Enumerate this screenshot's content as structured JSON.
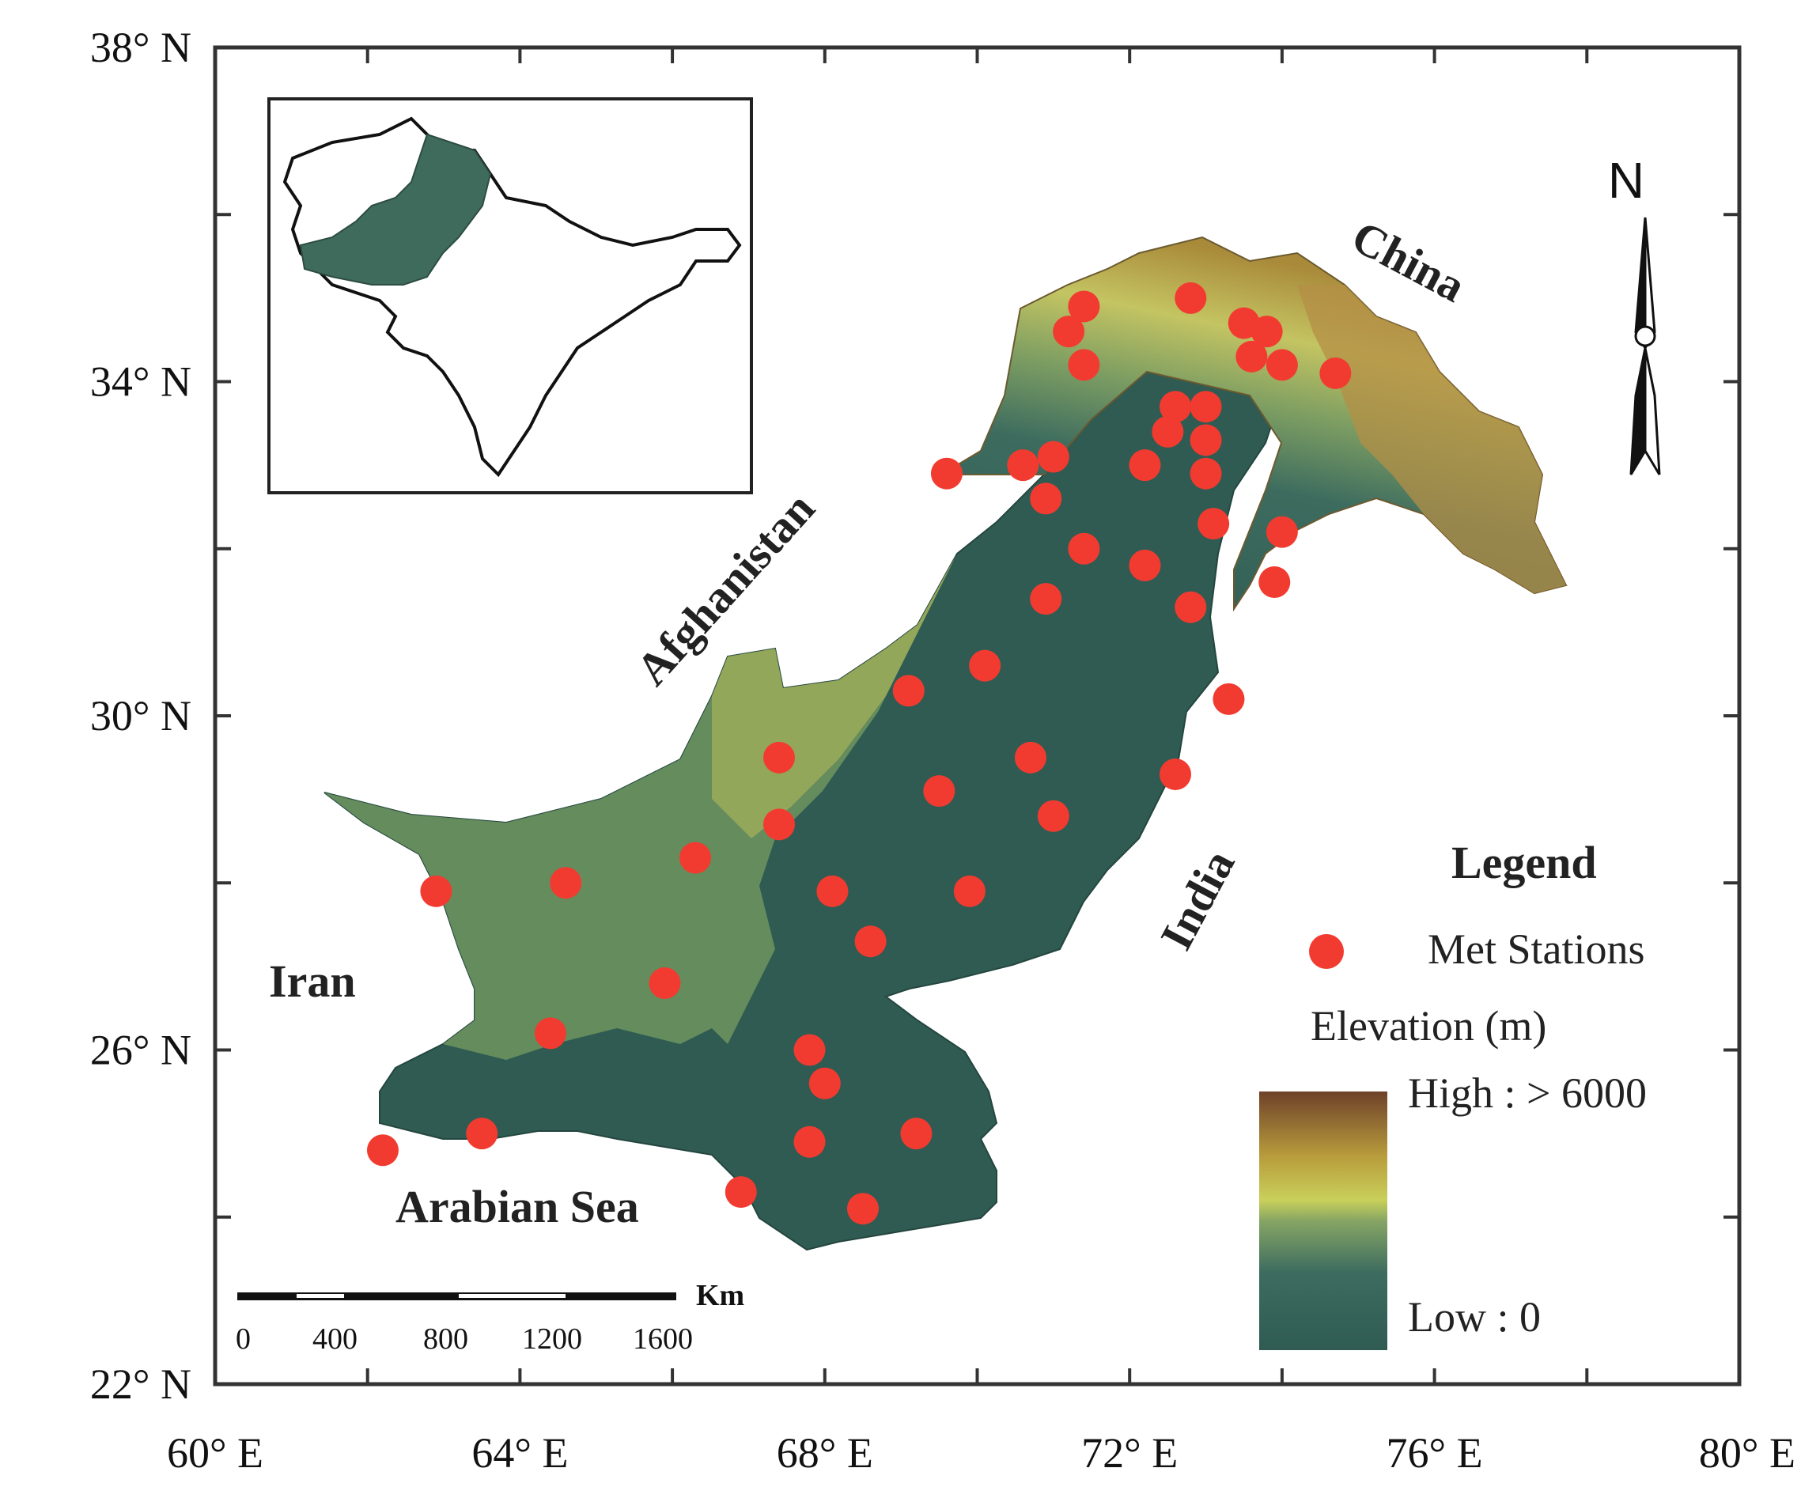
{
  "map": {
    "lat_ticks": [
      {
        "value": 22,
        "label": "22° N"
      },
      {
        "value": 26,
        "label": "26° N"
      },
      {
        "value": 30,
        "label": "30° N"
      },
      {
        "value": 34,
        "label": "34° N"
      },
      {
        "value": 38,
        "label": "38° N"
      }
    ],
    "lon_ticks": [
      {
        "value": 60,
        "label": "60° E"
      },
      {
        "value": 64,
        "label": "64° E"
      },
      {
        "value": 68,
        "label": "68° E"
      },
      {
        "value": 72,
        "label": "72° E"
      },
      {
        "value": 76,
        "label": "76° E"
      },
      {
        "value": 80,
        "label": "80° E"
      }
    ],
    "labels": {
      "china": "China",
      "afghanistan": "Afghanistan",
      "iran": "Iran",
      "india": "India",
      "arabian_sea": "Arabian Sea"
    },
    "north_arrow": "N",
    "scale_bar": {
      "unit": "Km",
      "ticks": [
        "0",
        "400",
        "800",
        "1200",
        "1600"
      ]
    },
    "legend": {
      "title": "Legend",
      "stations_label": "Met Stations",
      "elevation_label": "Elevation (m)",
      "high_label": "High : > 6000",
      "low_label": "Low : 0",
      "station_color": "#f23b30",
      "ramp_colors": [
        "#2f5b53",
        "#5a8a6b",
        "#c9d05a",
        "#b89c3c",
        "#7a4a2e"
      ]
    },
    "stations": [
      [
        71.4,
        34.9
      ],
      [
        71.2,
        34.6
      ],
      [
        71.4,
        34.2
      ],
      [
        72.8,
        35.0
      ],
      [
        73.5,
        34.7
      ],
      [
        73.8,
        34.6
      ],
      [
        73.6,
        34.3
      ],
      [
        74.0,
        34.2
      ],
      [
        74.7,
        34.1
      ],
      [
        72.6,
        33.7
      ],
      [
        73.0,
        33.7
      ],
      [
        72.5,
        33.4
      ],
      [
        73.0,
        33.3
      ],
      [
        72.2,
        33.0
      ],
      [
        73.0,
        32.9
      ],
      [
        69.6,
        32.9
      ],
      [
        70.6,
        33.0
      ],
      [
        71.0,
        33.1
      ],
      [
        70.9,
        32.6
      ],
      [
        73.1,
        32.3
      ],
      [
        74.0,
        32.2
      ],
      [
        71.4,
        32.0
      ],
      [
        72.2,
        31.8
      ],
      [
        73.9,
        31.6
      ],
      [
        70.9,
        31.4
      ],
      [
        72.8,
        31.3
      ],
      [
        70.1,
        30.6
      ],
      [
        69.1,
        30.3
      ],
      [
        73.3,
        30.2
      ],
      [
        67.4,
        29.5
      ],
      [
        70.7,
        29.5
      ],
      [
        69.5,
        29.1
      ],
      [
        72.6,
        29.3
      ],
      [
        71.0,
        28.8
      ],
      [
        67.4,
        28.7
      ],
      [
        66.3,
        28.3
      ],
      [
        62.9,
        27.9
      ],
      [
        64.6,
        28.0
      ],
      [
        68.1,
        27.9
      ],
      [
        69.9,
        27.9
      ],
      [
        68.6,
        27.3
      ],
      [
        65.9,
        26.8
      ],
      [
        64.4,
        26.2
      ],
      [
        67.8,
        26.0
      ],
      [
        68.0,
        25.6
      ],
      [
        67.8,
        24.9
      ],
      [
        69.2,
        25.0
      ],
      [
        63.5,
        25.0
      ],
      [
        62.2,
        24.8
      ],
      [
        66.9,
        24.3
      ],
      [
        68.5,
        24.1
      ]
    ]
  }
}
